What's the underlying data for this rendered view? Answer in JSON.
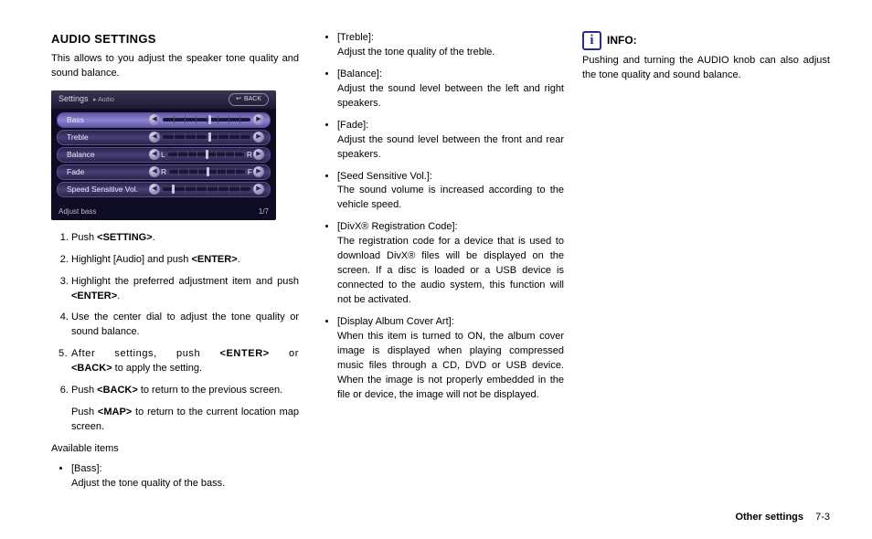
{
  "title": "AUDIO SETTINGS",
  "intro": "This allows to you adjust the speaker tone quality and sound balance.",
  "screenshot": {
    "breadcrumb_main": "Settings",
    "breadcrumb_sub": "▸ Audio",
    "back": "BACK",
    "rows": [
      {
        "label": "Bass",
        "type": "slider",
        "knob": 0.52,
        "selected": true
      },
      {
        "label": "Treble",
        "type": "slider",
        "knob": 0.52
      },
      {
        "label": "Balance",
        "type": "lr",
        "left": "L",
        "right": "R",
        "knob": 0.5
      },
      {
        "label": "Fade",
        "type": "lr",
        "left": "R",
        "right": "F",
        "knob": 0.5
      },
      {
        "label": "Speed Sensitive Vol.",
        "type": "slider",
        "knob": 0.1
      }
    ],
    "page_indicator": "1/7",
    "hint": "Adjust bass"
  },
  "steps": [
    {
      "pre": "Push ",
      "bold": "<SETTING>",
      "post": "."
    },
    {
      "pre": "Highlight [Audio] and push ",
      "bold": "<ENTER>",
      "post": "."
    },
    {
      "pre": "Highlight the preferred adjustment item and push ",
      "bold": "<ENTER>",
      "post": "."
    },
    {
      "pre": "Use the center dial to adjust the tone quality or sound balance.",
      "bold": "",
      "post": ""
    },
    {
      "html5": true
    },
    {
      "pre": "Push ",
      "bold": "<BACK>",
      "post": " to return to the previous screen.",
      "sub_pre": "Push ",
      "sub_bold": "<MAP>",
      "sub_post": " to return to the current location map screen."
    }
  ],
  "step5": {
    "a": "After settings, push ",
    "b": "<ENTER>",
    "c": " or ",
    "d": "<BACK>",
    "e": " to apply the setting."
  },
  "available_label": "Available items",
  "items_col1": [
    {
      "label": "[Bass]:",
      "desc": "Adjust the tone quality of the bass."
    }
  ],
  "items_col2": [
    {
      "label": "[Treble]:",
      "desc": "Adjust the tone quality of the treble."
    },
    {
      "label": "[Balance]:",
      "desc": "Adjust the sound level between the left and right speakers."
    },
    {
      "label": "[Fade]:",
      "desc": "Adjust the sound level between the front and rear speakers."
    },
    {
      "label": "[Seed Sensitive Vol.]:",
      "desc": "The sound volume is increased according to the vehicle speed."
    },
    {
      "label": "[DivX® Registration Code]:",
      "desc": "The registration code for a device that is used to download DivX® files will be displayed on the screen. If a disc is loaded or a USB device is connected to the audio system, this function will not be activated."
    },
    {
      "label": "[Display Album Cover Art]:",
      "desc": "When this item is turned to ON, the album cover image is displayed when playing compressed music files through a CD, DVD or USB device. When the image is not properly embedded in the file or device, the image will not be displayed."
    }
  ],
  "info_label": "INFO:",
  "info_text": "Pushing and turning the AUDIO knob can also adjust the tone quality and sound balance.",
  "footer_section": "Other settings",
  "footer_page": "7-3"
}
